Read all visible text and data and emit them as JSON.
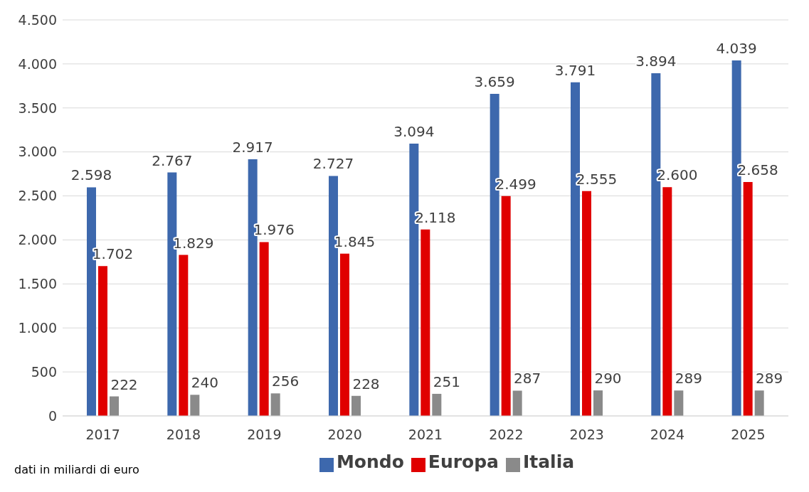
{
  "chart_data": {
    "type": "bar",
    "categories": [
      "2017",
      "2018",
      "2019",
      "2020",
      "2021",
      "2022",
      "2023",
      "2024",
      "2025"
    ],
    "series": [
      {
        "name": "Mondo",
        "color": "#3d68ad",
        "values": [
          2598,
          2767,
          2917,
          2727,
          3094,
          3659,
          3791,
          3894,
          4039
        ],
        "value_labels": [
          "2.598",
          "2.767",
          "2.917",
          "2.727",
          "3.094",
          "3.659",
          "3.791",
          "3.894",
          "4.039"
        ]
      },
      {
        "name": "Europa",
        "color": "#e00000",
        "values": [
          1702,
          1829,
          1976,
          1845,
          2118,
          2499,
          2555,
          2600,
          2658
        ],
        "value_labels": [
          "1.702",
          "1.829",
          "1.976",
          "1.845",
          "2.118",
          "2.499",
          "2.555",
          "2.600",
          "2.658"
        ]
      },
      {
        "name": "Italia",
        "color": "#8a8a8a",
        "values": [
          222,
          240,
          256,
          228,
          251,
          287,
          290,
          289,
          289
        ],
        "value_labels": [
          "222",
          "240",
          "256",
          "228",
          "251",
          "287",
          "290",
          "289",
          "289"
        ]
      }
    ],
    "ylim": [
      0,
      4500
    ],
    "yticks": [
      0,
      500,
      {
        "value": 1000,
        "label": "1.000"
      },
      {
        "value": 1500,
        "label": "1.500"
      },
      {
        "value": 2000,
        "label": "2.000"
      },
      {
        "value": 2500,
        "label": "2.500"
      },
      {
        "value": 3000,
        "label": "3.000"
      },
      {
        "value": 3500,
        "label": "3.500"
      },
      {
        "value": 4000,
        "label": "4.000"
      },
      {
        "value": 4500,
        "label": "4.500"
      }
    ],
    "grid": "y",
    "legend": "bottom",
    "annotations": [
      "dati in miliardi di euro"
    ]
  }
}
